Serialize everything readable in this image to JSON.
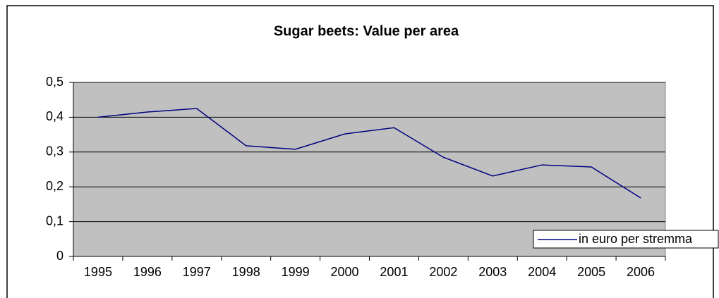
{
  "chart_data": {
    "type": "line",
    "title": "Sugar beets: Value per area",
    "categories": [
      "1995",
      "1996",
      "1997",
      "1998",
      "1999",
      "2000",
      "2001",
      "2002",
      "2003",
      "2004",
      "2005",
      "2006"
    ],
    "series": [
      {
        "name": "in euro per stremma",
        "color": "#000080",
        "values": [
          0.4,
          0.415,
          0.425,
          0.318,
          0.308,
          0.352,
          0.37,
          0.285,
          0.231,
          0.263,
          0.257,
          0.168
        ]
      }
    ],
    "ylim": [
      0,
      0.5
    ],
    "yticks": [
      0,
      {
        "value": 0.1,
        "label": "0,1"
      },
      {
        "value": 0.2,
        "label": "0,2"
      },
      {
        "value": 0.3,
        "label": "0,3"
      },
      {
        "value": 0.4,
        "label": "0,4"
      },
      {
        "value": 0.5,
        "label": "0,5"
      }
    ],
    "grid": true,
    "plot_background": "#c0c0c0",
    "legend": "bottom-right"
  }
}
